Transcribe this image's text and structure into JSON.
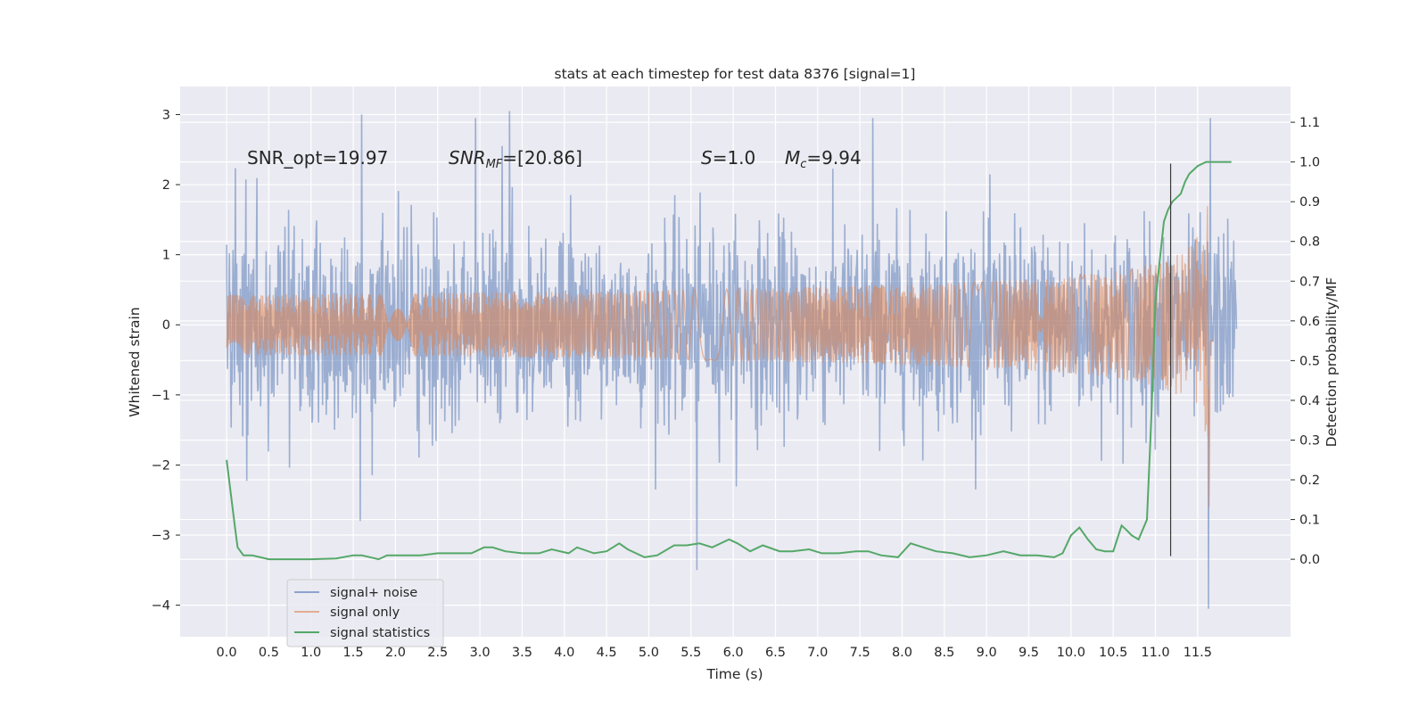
{
  "chart_data": {
    "type": "line",
    "title": "stats at each timestep for test data 8376 [signal=1]",
    "xlabel": "Time (s)",
    "ylabel_left": "Whitened strain",
    "ylabel_right": "Detection probability/MF",
    "xlim": [
      -0.55,
      12.6
    ],
    "ylim_left": [
      -4.45,
      3.4
    ],
    "ylim_right": [
      -0.195,
      1.19
    ],
    "xticks": [
      0.0,
      0.5,
      1.0,
      1.5,
      2.0,
      2.5,
      3.0,
      3.5,
      4.0,
      4.5,
      5.0,
      5.5,
      6.0,
      6.5,
      7.0,
      7.5,
      8.0,
      8.5,
      9.0,
      9.5,
      10.0,
      10.5,
      11.0,
      11.5
    ],
    "xtick_labels": [
      "0.0",
      "0.5",
      "1.0",
      "1.5",
      "2.0",
      "2.5",
      "3.0",
      "3.5",
      "4.0",
      "4.5",
      "5.0",
      "5.5",
      "6.0",
      "6.5",
      "7.0",
      "7.5",
      "8.0",
      "8.5",
      "9.0",
      "9.5",
      "10.0",
      "10.5",
      "11.0",
      "11.5"
    ],
    "yticks_left": [
      3,
      2,
      1,
      0,
      -1,
      -2,
      -3,
      -4
    ],
    "ytick_labels_left": [
      "3",
      "2",
      "1",
      "0",
      "−1",
      "−2",
      "−3",
      "−4"
    ],
    "yticks_right": [
      1.1,
      1.0,
      0.9,
      0.8,
      0.7,
      0.6,
      0.5,
      0.4,
      0.3,
      0.2,
      0.1,
      0.0
    ],
    "ytick_labels_right": [
      "1.1",
      "1.0",
      "0.9",
      "0.8",
      "0.7",
      "0.6",
      "0.5",
      "0.4",
      "0.3",
      "0.2",
      "0.1",
      "0.0"
    ],
    "grid": true,
    "legend_position": "lower-left",
    "annotations": {
      "snr_opt": "SNR_opt=19.97",
      "snr_mf_main": "SNR",
      "snr_mf_sub": "MF",
      "snr_mf_value": "=[20.86]",
      "s_label": "S",
      "s_value": "=1.0",
      "mc_label": "M",
      "mc_sub": "c",
      "mc_value": "=9.94"
    },
    "marker_line": {
      "x": 11.18,
      "y_range": [
        -3.3,
        2.3
      ]
    },
    "series": [
      {
        "name": "signal+ noise",
        "axis": "left",
        "color": "#4c72b0",
        "kind": "noise",
        "t_range": [
          0.0,
          11.96
        ],
        "envelope_typical": [
          -1.6,
          1.7
        ],
        "extremes": [
          {
            "t": 1.6,
            "v": 3.0
          },
          {
            "t": 2.95,
            "v": 2.95
          },
          {
            "t": 3.35,
            "v": 3.05
          },
          {
            "t": 7.65,
            "v": 2.95
          },
          {
            "t": 11.65,
            "v": 2.95
          },
          {
            "t": 1.58,
            "v": -2.8
          },
          {
            "t": 5.57,
            "v": -3.5
          },
          {
            "t": 11.63,
            "v": -4.05
          }
        ]
      },
      {
        "name": "signal only",
        "axis": "left",
        "color": "#dd8452",
        "kind": "chirp",
        "t_range": [
          0.0,
          11.68
        ],
        "coalescence_t": 11.65,
        "peak_amplitude": 2.1,
        "min_value": -2.6
      },
      {
        "name": "signal statistics",
        "axis": "right",
        "color": "#55a868",
        "kind": "line",
        "x": [
          0.0,
          0.1,
          0.13,
          0.2,
          0.3,
          0.4,
          0.5,
          0.7,
          1.0,
          1.3,
          1.5,
          1.6,
          1.8,
          1.9,
          2.1,
          2.3,
          2.5,
          2.7,
          2.9,
          3.05,
          3.15,
          3.3,
          3.5,
          3.7,
          3.85,
          4.05,
          4.15,
          4.35,
          4.5,
          4.65,
          4.75,
          4.95,
          5.1,
          5.3,
          5.45,
          5.6,
          5.75,
          5.95,
          6.05,
          6.2,
          6.35,
          6.55,
          6.7,
          6.9,
          7.05,
          7.25,
          7.45,
          7.6,
          7.75,
          7.95,
          8.1,
          8.25,
          8.4,
          8.6,
          8.8,
          9.0,
          9.2,
          9.4,
          9.6,
          9.8,
          9.9,
          10.0,
          10.1,
          10.2,
          10.3,
          10.4,
          10.5,
          10.6,
          10.65,
          10.72,
          10.8,
          10.9,
          10.95,
          11.0,
          11.1,
          11.15,
          11.2,
          11.3,
          11.35,
          11.4,
          11.5,
          11.6,
          11.7,
          11.8,
          11.9
        ],
        "values": [
          0.25,
          0.08,
          0.03,
          0.01,
          0.01,
          0.005,
          0.0,
          0.0,
          0.0,
          0.002,
          0.01,
          0.01,
          0.0,
          0.01,
          0.01,
          0.01,
          0.015,
          0.015,
          0.015,
          0.03,
          0.03,
          0.02,
          0.015,
          0.015,
          0.025,
          0.015,
          0.03,
          0.015,
          0.02,
          0.04,
          0.025,
          0.005,
          0.01,
          0.035,
          0.035,
          0.04,
          0.03,
          0.05,
          0.04,
          0.02,
          0.035,
          0.02,
          0.02,
          0.025,
          0.015,
          0.015,
          0.02,
          0.02,
          0.01,
          0.005,
          0.04,
          0.03,
          0.02,
          0.015,
          0.005,
          0.01,
          0.02,
          0.01,
          0.01,
          0.005,
          0.015,
          0.06,
          0.08,
          0.05,
          0.025,
          0.02,
          0.02,
          0.085,
          0.075,
          0.06,
          0.05,
          0.1,
          0.35,
          0.65,
          0.85,
          0.88,
          0.9,
          0.92,
          0.95,
          0.97,
          0.99,
          1.0,
          1.0,
          1.0,
          1.0
        ]
      }
    ]
  }
}
